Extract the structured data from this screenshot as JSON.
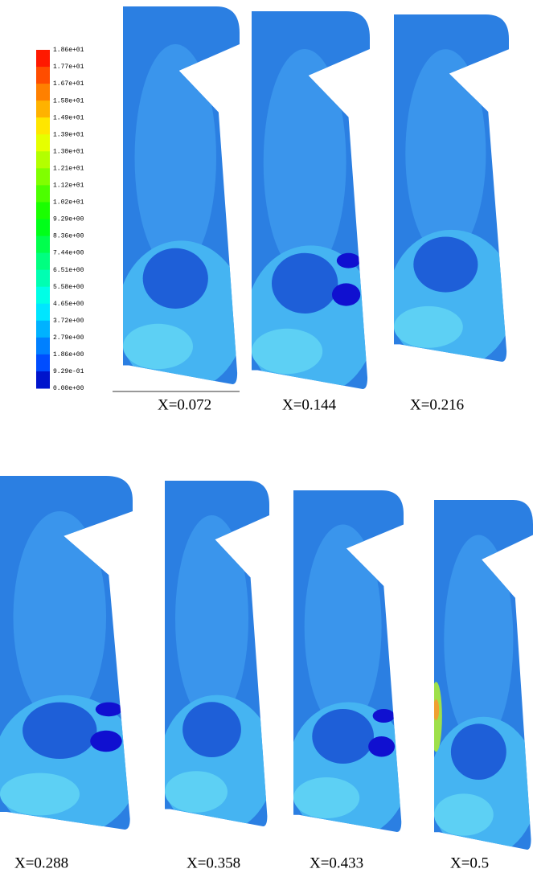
{
  "colorbar": {
    "labels": [
      "1.86e+01",
      "1.77e+01",
      "1.67e+01",
      "1.58e+01",
      "1.49e+01",
      "1.39e+01",
      "1.30e+01",
      "1.21e+01",
      "1.12e+01",
      "1.02e+01",
      "9.29e+00",
      "8.36e+00",
      "7.44e+00",
      "6.51e+00",
      "5.58e+00",
      "4.65e+00",
      "3.72e+00",
      "2.79e+00",
      "1.86e+00",
      "9.29e-01",
      "0.00e+00"
    ]
  },
  "panels": [
    {
      "label": "X=0.072"
    },
    {
      "label": "X=0.144"
    },
    {
      "label": "X=0.216"
    },
    {
      "label": "X=0.288"
    },
    {
      "label": "X=0.358"
    },
    {
      "label": "X=0.433"
    },
    {
      "label": "X=0.5"
    }
  ]
}
